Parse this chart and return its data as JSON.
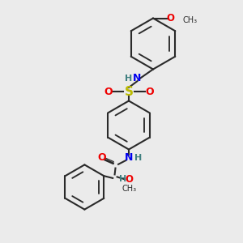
{
  "background_color": "#ebebeb",
  "bond_color": "#2a2a2a",
  "N_color": "#0000ee",
  "O_color": "#ee0000",
  "S_color": "#bbbb00",
  "H_color": "#408080",
  "fig_size": [
    3.0,
    3.0
  ],
  "dpi": 100,
  "xlim": [
    0,
    10
  ],
  "ylim": [
    0,
    10
  ]
}
